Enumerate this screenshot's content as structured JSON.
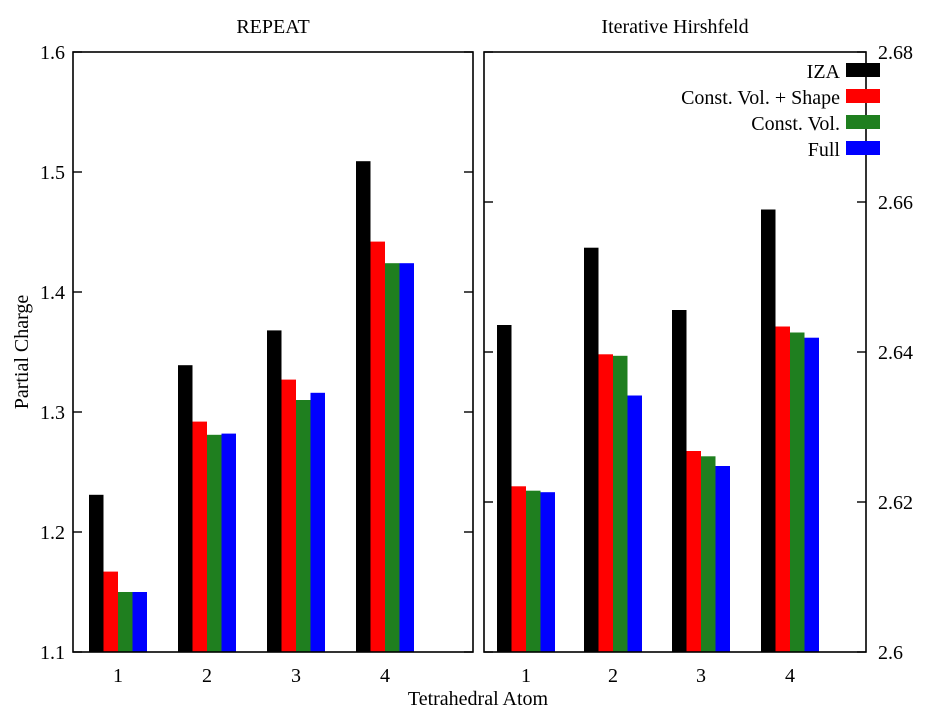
{
  "chart_data": [
    {
      "type": "bar",
      "title": "REPEAT",
      "categories": [
        "1",
        "2",
        "3",
        "4"
      ],
      "xlabel": "Tetrahedral Atom",
      "ylabel": "Partial Charge",
      "ylim": [
        1.1,
        1.6
      ],
      "yticks": [
        "1.1",
        "1.2",
        "1.3",
        "1.4",
        "1.5",
        "1.6"
      ],
      "y_axis_side": "left",
      "grid": false,
      "series": [
        {
          "name": "IZA",
          "color": "#000000",
          "values": [
            1.231,
            1.339,
            1.368,
            1.509
          ]
        },
        {
          "name": "Const. Vol. + Shape",
          "color": "#ff0000",
          "values": [
            1.167,
            1.292,
            1.327,
            1.442
          ]
        },
        {
          "name": "Const. Vol.",
          "color": "#1f7f1f",
          "values": [
            1.15,
            1.281,
            1.31,
            1.424
          ]
        },
        {
          "name": "Full",
          "color": "#0000ff",
          "values": [
            1.15,
            1.282,
            1.316,
            1.424
          ]
        }
      ]
    },
    {
      "type": "bar",
      "title": "Iterative Hirshfeld",
      "categories": [
        "1",
        "2",
        "3",
        "4"
      ],
      "xlabel": "Tetrahedral Atom",
      "ylim": [
        2.6,
        2.68
      ],
      "yticks": [
        "2.6",
        "2.62",
        "2.64",
        "2.66",
        "2.68"
      ],
      "y_axis_side": "right",
      "grid": false,
      "legend_position": "top-right",
      "series": [
        {
          "name": "IZA",
          "color": "#000000",
          "values": [
            2.6436,
            2.6539,
            2.6456,
            2.659
          ]
        },
        {
          "name": "Const. Vol. + Shape",
          "color": "#ff0000",
          "values": [
            2.6221,
            2.6397,
            2.6268,
            2.6434
          ]
        },
        {
          "name": "Const. Vol.",
          "color": "#1f7f1f",
          "values": [
            2.6215,
            2.6395,
            2.6261,
            2.6426
          ]
        },
        {
          "name": "Full",
          "color": "#0000ff",
          "values": [
            2.6213,
            2.6342,
            2.6248,
            2.6419
          ]
        }
      ]
    }
  ],
  "shared": {
    "xlabel": "Tetrahedral Atom",
    "ylabel": "Partial Charge"
  }
}
